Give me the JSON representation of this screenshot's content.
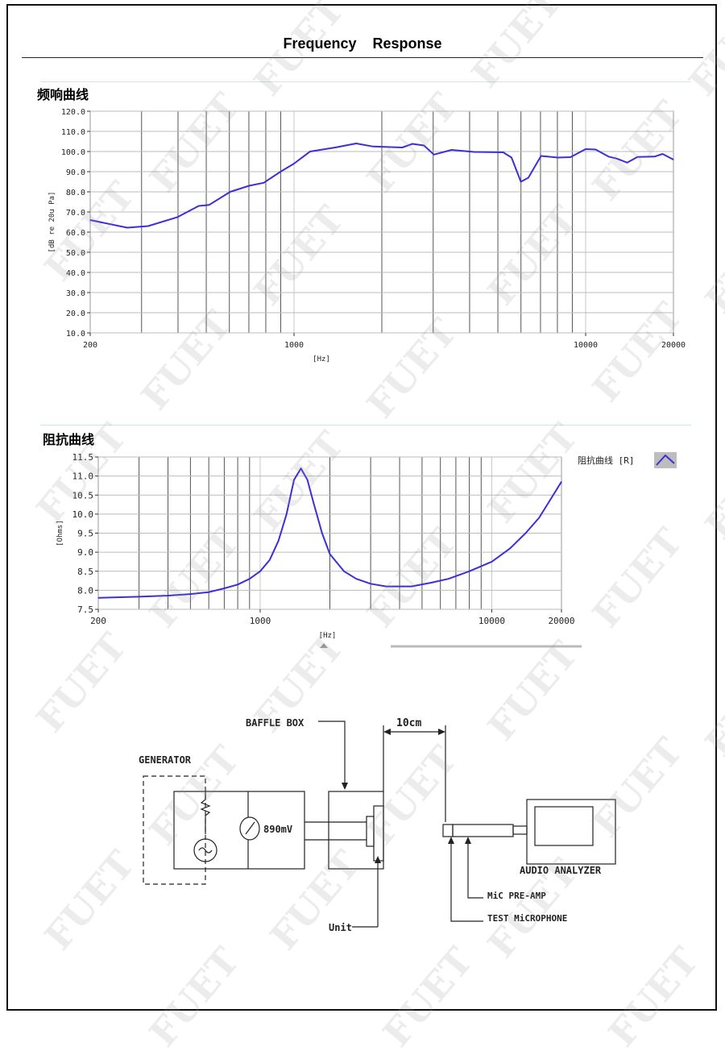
{
  "page_title": "Frequency    Response",
  "watermark": "FUET",
  "chart_data": [
    {
      "type": "line",
      "title": "频响曲线",
      "xlabel": "[Hz]",
      "ylabel": "[dB re 20u Pa]",
      "x_scale": "log",
      "xlim": [
        200,
        20000
      ],
      "ylim": [
        10,
        120
      ],
      "grid": true,
      "x_tick_labels": [
        "200",
        "1000",
        "10000",
        "20000"
      ],
      "y_tick_labels": [
        "120.0",
        "110.0",
        "100.0",
        "90.0",
        "80.0",
        "70.0",
        "60.0",
        "50.0",
        "40.0",
        "30.0",
        "20.0",
        "10.0"
      ],
      "series_color": "#3b2fd9",
      "x": [
        200,
        268,
        316,
        399,
        471,
        511,
        604,
        701,
        787,
        899,
        1000,
        1135,
        1384,
        1634,
        1866,
        2350,
        2545,
        2790,
        3017,
        3470,
        4140,
        5215,
        5570,
        5995,
        6360,
        7030,
        8030,
        8870,
        10000,
        10820,
        11980,
        12800,
        13880,
        15050,
        17220,
        18350,
        20000
      ],
      "y": [
        66,
        62.2,
        63,
        67.5,
        73,
        73.5,
        80,
        83,
        84.5,
        90,
        94,
        100,
        102,
        104,
        102.5,
        102,
        103.8,
        103,
        98.5,
        100.8,
        99.8,
        99.6,
        97,
        85,
        87,
        97.8,
        97,
        97.2,
        101.2,
        101,
        97.5,
        96.5,
        94.5,
        97.3,
        97.5,
        98.8,
        96
      ]
    },
    {
      "type": "line",
      "title": "阻抗曲线",
      "xlabel": "[Hz]",
      "ylabel": "[Ohms]",
      "x_scale": "log",
      "xlim": [
        200,
        20000
      ],
      "ylim": [
        7.5,
        11.5
      ],
      "grid": true,
      "legend": {
        "label": "阻抗曲线 [R]",
        "placement": "top-right"
      },
      "x_tick_labels": [
        "200",
        "1000",
        "10000",
        "20000"
      ],
      "y_tick_labels": [
        "11.5",
        "11.0",
        "10.5",
        "10.0",
        "9.5",
        "9.0",
        "8.5",
        "8.0",
        "7.5"
      ],
      "series_color": "#3b2fd9",
      "x": [
        200,
        300,
        400,
        500,
        600,
        700,
        800,
        900,
        1000,
        1100,
        1200,
        1300,
        1400,
        1500,
        1600,
        1700,
        1850,
        2000,
        2300,
        2600,
        3000,
        3500,
        4500,
        5500,
        6500,
        8000,
        10000,
        12000,
        14000,
        16000,
        18000,
        20000
      ],
      "y": [
        7.8,
        7.83,
        7.86,
        7.9,
        7.95,
        8.05,
        8.15,
        8.3,
        8.5,
        8.8,
        9.3,
        10.0,
        10.9,
        11.2,
        10.9,
        10.3,
        9.5,
        8.95,
        8.5,
        8.3,
        8.17,
        8.1,
        8.1,
        8.2,
        8.3,
        8.5,
        8.75,
        9.1,
        9.5,
        9.9,
        10.4,
        10.85
      ]
    }
  ],
  "diagram": {
    "generator": "GENERATOR",
    "baffle_box": "BAFFLE BOX",
    "distance": "10cm",
    "voltage": "890mV",
    "unit": "Unit",
    "audio_analyzer": "AUDIO ANALYZER",
    "mic_preamp": "MiC PRE-AMP",
    "test_mic": "TEST MiCROPHONE"
  }
}
